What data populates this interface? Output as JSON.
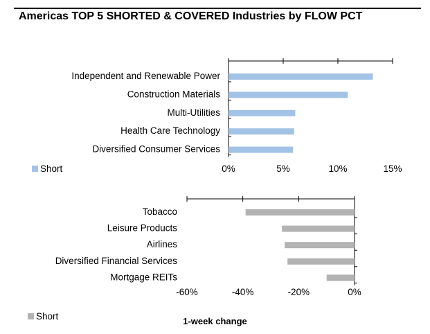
{
  "title": "Americas TOP 5 SHORTED & COVERED Industries by FLOW PCT",
  "footer": "1-week change",
  "colors": {
    "top_bar": "#a3c3e6",
    "bottom_bar": "#b3b3b3",
    "axis": "#000000"
  },
  "chart_data": [
    {
      "type": "bar",
      "orientation": "horizontal",
      "categories": [
        "Independent and Renewable Power",
        "Construction Materials",
        "Multi-Utilities",
        "Health Care Technology",
        "Diversified Consumer Services"
      ],
      "series": [
        {
          "name": "Short",
          "values": [
            13.2,
            10.9,
            6.1,
            6.0,
            5.9
          ]
        }
      ],
      "xlim": [
        0,
        15
      ],
      "xticks": [
        "0%",
        "5%",
        "10%",
        "15%"
      ],
      "legend": "bottom-left"
    },
    {
      "type": "bar",
      "orientation": "horizontal",
      "categories": [
        "Tobacco",
        "Leisure Products",
        "Airlines",
        "Diversified Financial Services",
        "Mortgage REITs"
      ],
      "series": [
        {
          "name": "Short",
          "values": [
            -39,
            -26,
            -25,
            -24,
            -10
          ]
        }
      ],
      "xlim": [
        -60,
        0
      ],
      "xticks": [
        "-60%",
        "-40%",
        "-20%",
        "0%"
      ],
      "legend": "bottom-left"
    }
  ]
}
